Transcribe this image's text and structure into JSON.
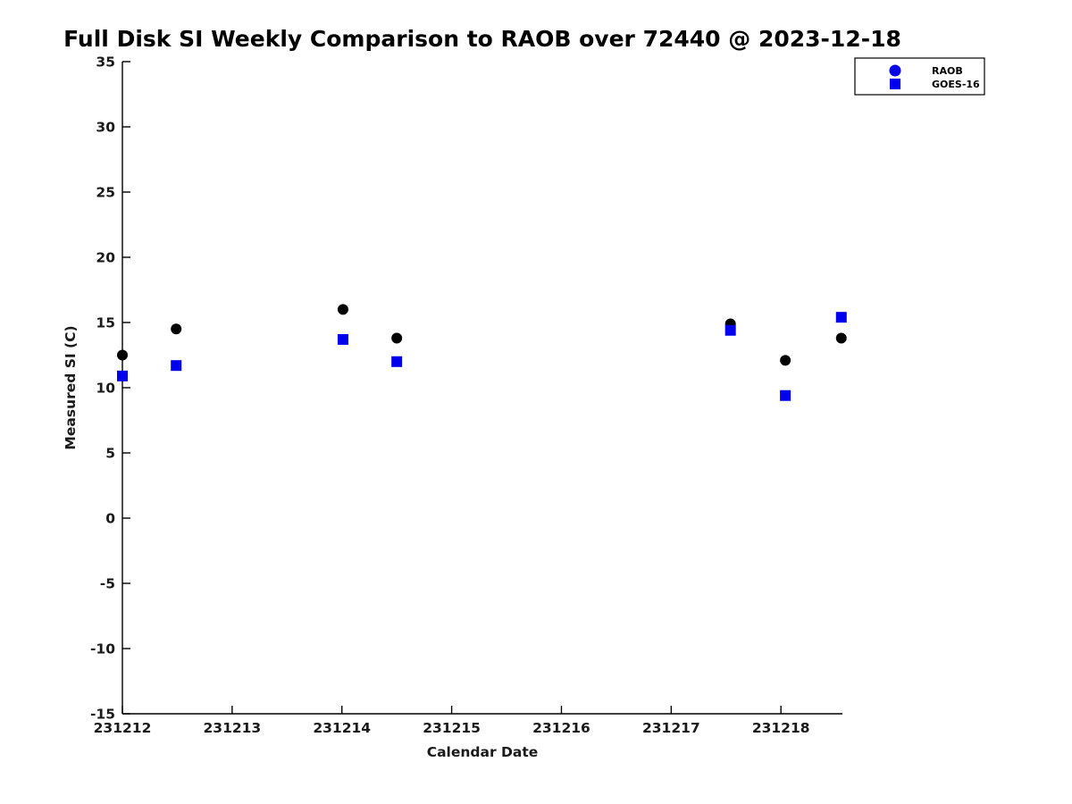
{
  "chart_data": {
    "type": "scatter",
    "title": "Full Disk SI Weekly Comparison to RAOB over 72440 @ 2023-12-18",
    "xlabel": "Calendar Date",
    "ylabel": "Measured SI (C)",
    "xlim": [
      231212,
      231218.56
    ],
    "ylim": [
      -15,
      35
    ],
    "x_ticks": [
      231212,
      231213,
      231214,
      231215,
      231216,
      231217,
      231218
    ],
    "y_ticks": [
      35,
      30,
      25,
      20,
      15,
      10,
      5,
      0,
      -5,
      -10,
      -15
    ],
    "grid": false,
    "background": "#ffffff",
    "spine_color": "#000000",
    "x": [
      231212.0,
      231212.49,
      231214.01,
      231214.5,
      231217.54,
      231218.04,
      231218.55
    ],
    "series": [
      {
        "name": "RAOB",
        "marker": "circle",
        "color": "#000000",
        "legend_marker_color": "#0000EE",
        "values": [
          12.5,
          14.5,
          16.0,
          13.8,
          14.9,
          12.1,
          13.8
        ]
      },
      {
        "name": "GOES-16",
        "marker": "square",
        "color": "#0000EE",
        "legend_marker_color": "#0000EE",
        "values": [
          10.9,
          11.7,
          13.7,
          12.0,
          14.4,
          9.4,
          15.4
        ]
      }
    ],
    "legend": {
      "position": "top-right",
      "entries": [
        "RAOB",
        "GOES-16"
      ]
    }
  }
}
